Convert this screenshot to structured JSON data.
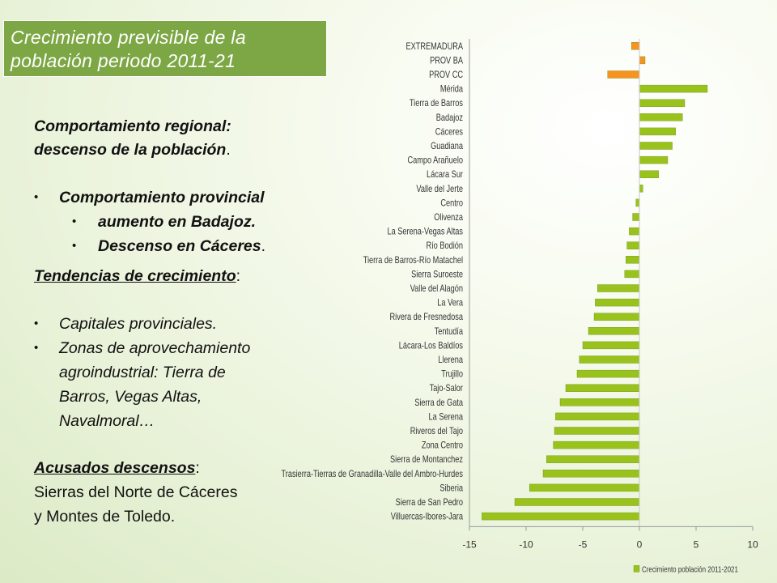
{
  "slide": {
    "title_line1": "Crecimiento previsible de la",
    "title_line2": "población periodo 2011-21",
    "regional_line1": "Comportamiento regional:",
    "regional_line2": "descenso de la población",
    "regional_trail": ".",
    "provincial_heading": "Comportamiento provincial",
    "provincial_items": [
      "aumento en Badajoz.",
      "Descenso en Cáceres"
    ],
    "provincial_item2_trail": ".",
    "trends_heading": "Tendencias de crecimiento",
    "trends_trail": ":",
    "trends_items": [
      "Capitales provinciales.",
      "Zonas de aprovechamiento"
    ],
    "trends_continuation": [
      "agroindustrial: Tierra de",
      "Barros, Vegas Altas,",
      "Navalmoral…"
    ],
    "declines_heading": "Acusados descensos",
    "declines_trail": ":",
    "declines_lines": [
      "Sierras del Norte de Cáceres",
      "y Montes de Toledo."
    ]
  },
  "chart_data": {
    "type": "bar",
    "orientation": "horizontal",
    "categories": [
      "EXTREMADURA",
      "PROV BA",
      "PROV CC",
      "Mérida",
      "Tierra de Barros",
      "Badajoz",
      "Cáceres",
      "Guadiana",
      "Campo Arañuelo",
      "Lácara Sur",
      "Valle del Jerte",
      "Centro",
      "Olivenza",
      "La Serena-Vegas Altas",
      "Río Bodión",
      "Tierra de Barros-Río Matachel",
      "Sierra Suroeste",
      "Valle del Alagón",
      "La Vera",
      "Rivera de Fresnedosa",
      "Tentudía",
      "Lácara-Los Baldíos",
      "Llerena",
      "Trujillo",
      "Tajo-Salor",
      "Sierra de Gata",
      "La Serena",
      "Riveros del Tajo",
      "Zona Centro",
      "Sierra de Montanchez",
      "Trasierra-Tierras de Granadilla-Valle del Ambro-Hurdes",
      "Siberia",
      "Sierra de San Pedro",
      "Villuercas-Ibores-Jara"
    ],
    "series": [
      {
        "name": "Crecimiento población 2011-2021",
        "values": [
          -0.7,
          0.5,
          -2.8,
          6.0,
          4.0,
          3.8,
          3.2,
          2.9,
          2.5,
          1.7,
          0.3,
          -0.3,
          -0.6,
          -0.9,
          -1.1,
          -1.2,
          -1.3,
          -3.7,
          -3.9,
          -4.0,
          -4.5,
          -5.0,
          -5.3,
          -5.5,
          -6.5,
          -7.0,
          -7.4,
          -7.5,
          -7.6,
          -8.2,
          -8.5,
          -9.7,
          -11.0,
          -13.9
        ]
      }
    ],
    "bar_colors": {
      "regional": "#f7931e",
      "comarca": "#99c31c"
    },
    "regional_count": 3,
    "xlim": [
      -15,
      10
    ],
    "xticks": [
      -15,
      -10,
      -5,
      0,
      5,
      10
    ],
    "xlabel": "",
    "ylabel": "",
    "legend": {
      "label": "Crecimiento población 2011-2021",
      "position": "bottom-right"
    },
    "grid": false
  }
}
